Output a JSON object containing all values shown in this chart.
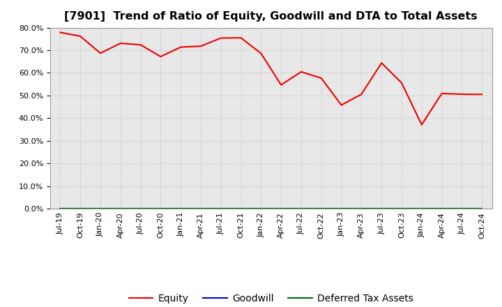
{
  "title": "[7901]  Trend of Ratio of Equity, Goodwill and DTA to Total Assets",
  "title_fontsize": 11.5,
  "equity": {
    "label": "Equity",
    "color": "#ee0000",
    "values": [
      0.779,
      0.762,
      0.687,
      0.731,
      0.724,
      0.672,
      0.714,
      0.718,
      0.754,
      0.755,
      0.686,
      0.547,
      0.605,
      0.577,
      0.458,
      0.506,
      0.644,
      0.556,
      0.371,
      0.509,
      0.506,
      0.505
    ]
  },
  "goodwill": {
    "label": "Goodwill",
    "color": "#0000cc",
    "values": [
      0,
      0,
      0,
      0,
      0,
      0,
      0,
      0,
      0,
      0,
      0,
      0,
      0,
      0,
      0,
      0,
      0,
      0,
      0,
      0,
      0,
      0
    ]
  },
  "dta": {
    "label": "Deferred Tax Assets",
    "color": "#006600",
    "values": [
      0,
      0,
      0,
      0,
      0,
      0,
      0,
      0,
      0,
      0,
      0,
      0,
      0,
      0,
      0,
      0,
      0,
      0,
      0,
      0,
      0,
      0
    ]
  },
  "xlabels": [
    "Jul-19",
    "Oct-19",
    "Jan-20",
    "Apr-20",
    "Jul-20",
    "Oct-20",
    "Jan-21",
    "Apr-21",
    "Jul-21",
    "Oct-21",
    "Jan-22",
    "Apr-22",
    "Jul-22",
    "Oct-22",
    "Jan-23",
    "Apr-23",
    "Jul-23",
    "Oct-23",
    "Jan-24",
    "Apr-24",
    "Jul-24",
    "Oct-24"
  ],
  "ylim": [
    0.0,
    0.8
  ],
  "yticks": [
    0.0,
    0.1,
    0.2,
    0.3,
    0.4,
    0.5,
    0.6,
    0.7,
    0.8
  ],
  "background_color": "#ffffff",
  "plot_bg_color": "#e8e8e8",
  "grid_color": "#bbbbbb",
  "figsize": [
    7.2,
    4.4
  ],
  "dpi": 100,
  "tick_fontsize": 8,
  "legend_fontsize": 10
}
